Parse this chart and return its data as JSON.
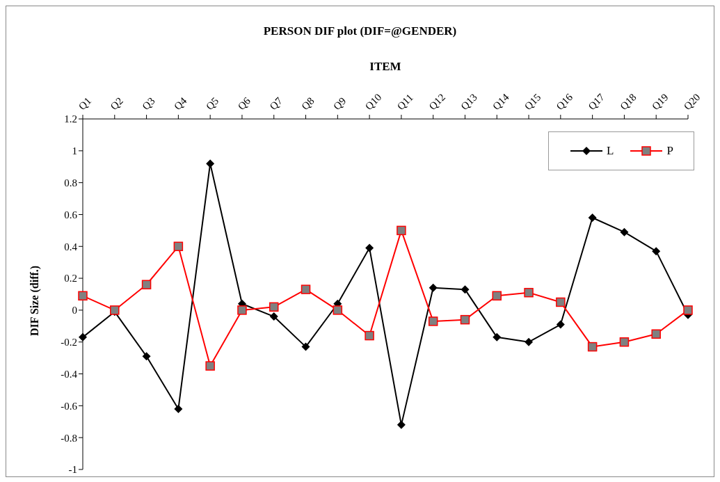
{
  "chart_data": {
    "type": "line",
    "title": "PERSON DIF plot (DIF=@GENDER)",
    "xlabel": "ITEM",
    "ylabel": "DIF Size (diff.)",
    "categories": [
      "Q1",
      "Q2",
      "Q3",
      "Q4",
      "Q5",
      "Q6",
      "Q7",
      "Q8",
      "Q9",
      "Q10",
      "Q11",
      "Q12",
      "Q13",
      "Q14",
      "Q15",
      "Q16",
      "Q17",
      "Q18",
      "Q19",
      "Q20"
    ],
    "series": [
      {
        "name": "L",
        "color": "#000000",
        "marker": "diamond",
        "values": [
          -0.17,
          -0.01,
          -0.29,
          -0.62,
          0.92,
          0.04,
          -0.04,
          -0.23,
          0.04,
          0.39,
          -0.72,
          0.14,
          0.13,
          -0.17,
          -0.2,
          -0.09,
          0.58,
          0.49,
          0.37,
          -0.03
        ]
      },
      {
        "name": "P",
        "color": "#ff0000",
        "marker": "square",
        "values": [
          0.09,
          0,
          0.16,
          0.4,
          -0.35,
          0,
          0.02,
          0.13,
          0,
          -0.16,
          0.5,
          -0.07,
          -0.06,
          0.09,
          0.11,
          0.05,
          -0.23,
          -0.2,
          -0.15,
          0
        ]
      }
    ],
    "ylim": [
      -1,
      1.2
    ],
    "yticks": [
      -1,
      -0.8,
      -0.6,
      -0.4,
      -0.2,
      0,
      0.2,
      0.4,
      0.6,
      0.8,
      1,
      1.2
    ],
    "grid": false,
    "legend": "top right"
  }
}
